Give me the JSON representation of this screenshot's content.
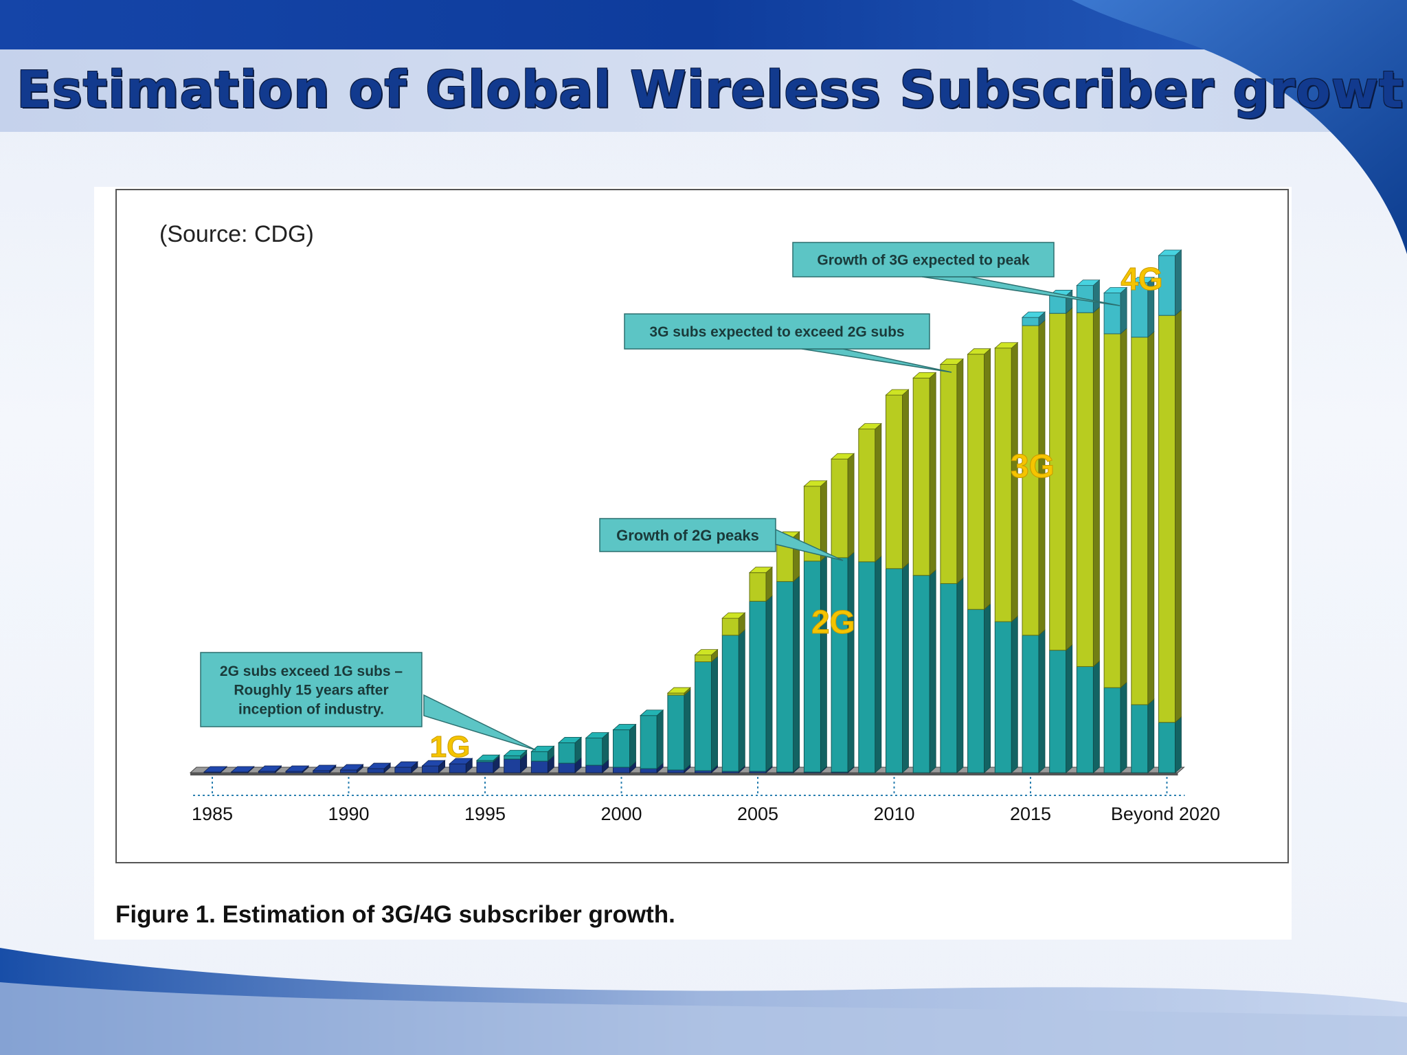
{
  "slide": {
    "title": "Estimation of Global Wireless  Subscriber growth"
  },
  "figure": {
    "caption": "Figure 1. Estimation of 3G/4G subscriber growth."
  },
  "colors": {
    "g1": "#1d3f9a",
    "g2": "#1fa0a0",
    "g3": "#b8cc20",
    "g4": "#3fbcc8",
    "callout_fill": "#5cc5c5",
    "title": "#123a8e"
  },
  "chart_data": {
    "type": "bar",
    "stacked": true,
    "source": "(Source: CDG)",
    "xlabel": "",
    "ylabel": "",
    "x_ticks": [
      "1985",
      "1990",
      "1995",
      "2000",
      "2005",
      "2010",
      "2015",
      "Beyond 2020"
    ],
    "categories": [
      "1985",
      "1986",
      "1987",
      "1988",
      "1989",
      "1990",
      "1991",
      "1992",
      "1993",
      "1994",
      "1995",
      "1996",
      "1997",
      "1998",
      "1999",
      "2000",
      "2001",
      "2002",
      "2003",
      "2004",
      "2005",
      "2006",
      "2007",
      "2008",
      "2009",
      "2010",
      "2011",
      "2012",
      "2013",
      "2014",
      "2015",
      "2016",
      "2017",
      "2018",
      "2019",
      "2020"
    ],
    "ylim": [
      0,
      760
    ],
    "series": [
      {
        "name": "1G",
        "values": [
          1,
          1,
          2,
          2,
          3,
          4,
          6,
          8,
          10,
          13,
          16,
          20,
          17,
          14,
          11,
          8,
          6,
          4,
          3,
          2,
          2,
          1,
          1,
          1,
          0,
          0,
          0,
          0,
          0,
          0,
          0,
          0,
          0,
          0,
          0,
          0
        ]
      },
      {
        "name": "2G",
        "values": [
          0,
          0,
          0,
          0,
          0,
          0,
          0,
          0,
          0,
          0,
          2,
          5,
          14,
          30,
          40,
          55,
          78,
          110,
          160,
          200,
          250,
          280,
          310,
          315,
          310,
          300,
          290,
          278,
          240,
          222,
          202,
          180,
          156,
          125,
          100,
          74
        ]
      },
      {
        "name": "3G",
        "values": [
          0,
          0,
          0,
          0,
          0,
          0,
          0,
          0,
          0,
          0,
          0,
          0,
          0,
          0,
          0,
          0,
          0,
          3,
          10,
          25,
          42,
          65,
          110,
          145,
          195,
          255,
          290,
          322,
          375,
          402,
          455,
          495,
          520,
          520,
          540,
          598
        ]
      },
      {
        "name": "4G",
        "values": [
          0,
          0,
          0,
          0,
          0,
          0,
          0,
          0,
          0,
          0,
          0,
          0,
          0,
          0,
          0,
          0,
          0,
          0,
          0,
          0,
          0,
          0,
          0,
          0,
          0,
          0,
          0,
          0,
          0,
          0,
          12,
          26,
          40,
          60,
          80,
          88
        ]
      }
    ],
    "annotations": [
      {
        "id": "a1",
        "lines": [
          "2G subs exceed 1G subs –",
          "Roughly 15 years after",
          "inception of industry."
        ],
        "points_to": "1997"
      },
      {
        "id": "a2",
        "lines": [
          "Growth of 2G peaks"
        ],
        "points_to": "2008"
      },
      {
        "id": "a3",
        "lines": [
          "3G subs expected to exceed 2G subs"
        ],
        "points_to": "2012"
      },
      {
        "id": "a4",
        "lines": [
          "Growth of 3G expected to peak"
        ],
        "points_to": "2018"
      }
    ],
    "generation_labels": [
      "1G",
      "2G",
      "3G",
      "4G"
    ]
  }
}
